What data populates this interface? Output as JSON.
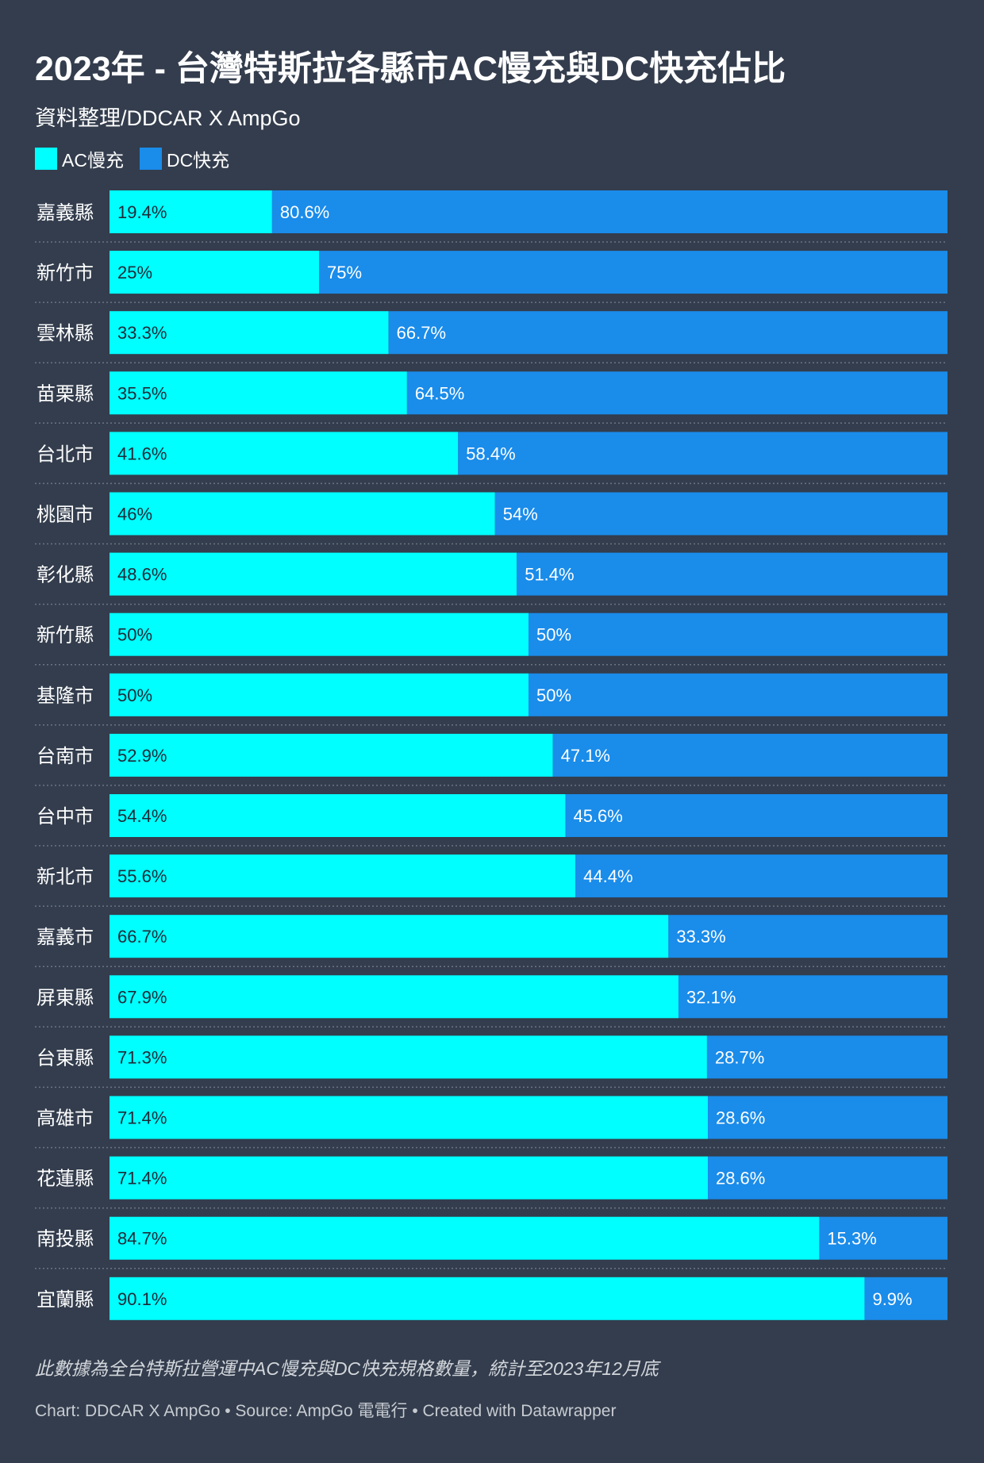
{
  "chart_data": {
    "type": "bar",
    "stacked": true,
    "orientation": "horizontal",
    "title": "2023年 - 台灣特斯拉各縣市AC慢充與DC快充佔比",
    "subtitle": "資料整理/DDCAR X AmpGo",
    "legend_position": "top-left",
    "categories": [
      "嘉義縣",
      "新竹市",
      "雲林縣",
      "苗栗縣",
      "台北市",
      "桃園市",
      "彰化縣",
      "新竹縣",
      "基隆市",
      "台南市",
      "台中市",
      "新北市",
      "嘉義市",
      "屏東縣",
      "台東縣",
      "高雄市",
      "花蓮縣",
      "南投縣",
      "宜蘭縣"
    ],
    "series": [
      {
        "name": "AC慢充",
        "color": "#00ffff",
        "values": [
          19.4,
          25,
          33.3,
          35.5,
          41.6,
          46,
          48.6,
          50,
          50,
          52.9,
          54.4,
          55.6,
          66.7,
          67.9,
          71.3,
          71.4,
          71.4,
          84.7,
          90.1
        ],
        "labels": [
          "19.4%",
          "25%",
          "33.3%",
          "35.5%",
          "41.6%",
          "46%",
          "48.6%",
          "50%",
          "50%",
          "52.9%",
          "54.4%",
          "55.6%",
          "66.7%",
          "67.9%",
          "71.3%",
          "71.4%",
          "71.4%",
          "84.7%",
          "90.1%"
        ]
      },
      {
        "name": "DC快充",
        "color": "#1a8cea",
        "values": [
          80.6,
          75,
          66.7,
          64.5,
          58.4,
          54,
          51.4,
          50,
          50,
          47.1,
          45.6,
          44.4,
          33.3,
          32.1,
          28.7,
          28.6,
          28.6,
          15.3,
          9.9
        ],
        "labels": [
          "80.6%",
          "75%",
          "66.7%",
          "64.5%",
          "58.4%",
          "54%",
          "51.4%",
          "50%",
          "50%",
          "47.1%",
          "45.6%",
          "44.4%",
          "33.3%",
          "32.1%",
          "28.7%",
          "28.6%",
          "28.6%",
          "15.3%",
          "9.9%"
        ]
      }
    ],
    "xlim": [
      0,
      100
    ],
    "unit": "%"
  },
  "footnote": "此數據為全台特斯拉營運中AC慢充與DC快充規格數量，統計至2023年12月底",
  "credits": "Chart: DDCAR X AmpGo • Source: AmpGo 電電行 • Created with Datawrapper",
  "colors": {
    "background": "#333d4d",
    "ac_label": "#1f2937",
    "dc_label": "#ffffff",
    "separator": "#6b7482"
  }
}
